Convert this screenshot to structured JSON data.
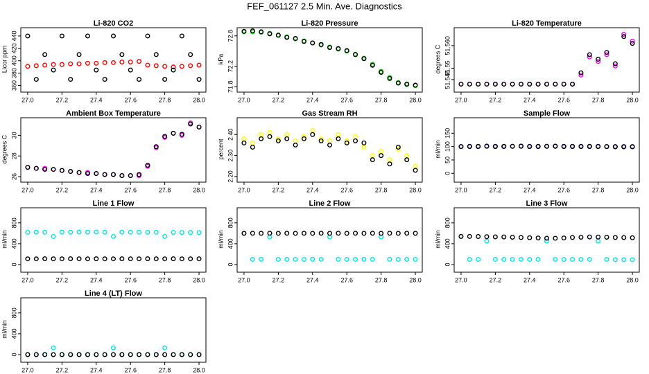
{
  "title": "FEF_061127  2.5 Min. Ave. Diagnostics",
  "chart_data": [
    {
      "type": "scatter",
      "title": "Li-820 CO2",
      "y_label": "Licor ppm",
      "x": [
        27.0,
        27.05,
        27.1,
        27.15,
        27.2,
        27.25,
        27.3,
        27.35,
        27.4,
        27.45,
        27.5,
        27.55,
        27.6,
        27.65,
        27.7,
        27.75,
        27.8,
        27.85,
        27.9,
        27.95,
        28.0
      ],
      "xlim": [
        26.98,
        28.02
      ],
      "xticks": [
        {
          "value": 27,
          "label": "27.0"
        },
        27.2,
        27.4,
        27.6,
        27.8,
        {
          "value": 28,
          "label": "28.0"
        }
      ],
      "ylim": [
        355,
        450
      ],
      "yticks": [
        360,
        380,
        400,
        420,
        440
      ],
      "series": [
        {
          "color": "#ff0000",
          "values": [
            391,
            392,
            393,
            394,
            394,
            395,
            395,
            396,
            396,
            397,
            397,
            398,
            398,
            399,
            393,
            392,
            391,
            390,
            391,
            392,
            393
          ]
        },
        {
          "color": "#000000",
          "values": [
            440,
            370,
            410,
            385,
            440,
            370,
            410,
            440,
            385,
            370,
            440,
            410,
            385,
            370,
            440,
            410,
            370,
            385,
            440,
            410,
            370
          ]
        }
      ]
    },
    {
      "type": "scatter",
      "title": "Li-820 Pressure",
      "y_label": "kPa",
      "x": [
        27.0,
        27.05,
        27.1,
        27.15,
        27.2,
        27.25,
        27.3,
        27.35,
        27.4,
        27.45,
        27.5,
        27.55,
        27.6,
        27.65,
        27.7,
        27.75,
        27.8,
        27.85,
        27.9,
        27.95,
        28.0
      ],
      "xlim": [
        26.98,
        28.02
      ],
      "xticks": [
        {
          "value": 27,
          "label": "27.0"
        },
        27.2,
        27.4,
        27.6,
        27.8,
        {
          "value": 28,
          "label": "28.0"
        }
      ],
      "ylim": [
        71.76,
        72.92
      ],
      "yticks": [
        71.8,
        72.2,
        72.8
      ],
      "series": [
        {
          "color": "#00cc00",
          "values": [
            72.88,
            72.88,
            72.87,
            72.85,
            72.82,
            72.78,
            72.74,
            72.7,
            72.66,
            72.62,
            72.58,
            72.54,
            72.5,
            72.44,
            72.36,
            72.24,
            72.1,
            71.98,
            71.88,
            71.84,
            71.82
          ]
        },
        {
          "color": "#000000",
          "values": [
            72.89,
            72.9,
            72.88,
            72.84,
            72.81,
            72.77,
            72.75,
            72.69,
            72.66,
            72.63,
            72.57,
            72.55,
            72.51,
            72.43,
            72.35,
            72.22,
            72.08,
            71.96,
            71.87,
            71.85,
            71.83
          ]
        }
      ]
    },
    {
      "type": "scatter",
      "title": "Li-820 Temperature",
      "y_label": "degrees C",
      "x": [
        27.0,
        27.05,
        27.1,
        27.15,
        27.2,
        27.25,
        27.3,
        27.35,
        27.4,
        27.45,
        27.5,
        27.55,
        27.6,
        27.65,
        27.7,
        27.75,
        27.8,
        27.85,
        27.9,
        27.95,
        28.0
      ],
      "xlim": [
        26.98,
        28.02
      ],
      "xticks": [
        {
          "value": 27,
          "label": "27.0"
        },
        27.2,
        27.4,
        27.6,
        27.8,
        {
          "value": 28,
          "label": "28.0"
        }
      ],
      "ylim": [
        51.541,
        51.567
      ],
      "yticks": [
        51.545,
        51.55,
        {
          "value": 51.56,
          "label": "51.560"
        }
      ],
      "series": [
        {
          "color": "#ff00ff",
          "values": [
            51.543,
            51.543,
            51.543,
            51.543,
            51.543,
            51.543,
            51.543,
            51.543,
            51.543,
            51.543,
            51.543,
            51.543,
            51.543,
            51.543,
            51.547,
            51.555,
            51.553,
            51.556,
            51.551,
            51.565,
            51.562
          ]
        },
        {
          "color": "#000000",
          "values": [
            51.543,
            51.543,
            51.543,
            51.543,
            51.543,
            51.543,
            51.543,
            51.543,
            51.543,
            51.543,
            51.543,
            51.543,
            51.543,
            51.543,
            51.548,
            51.556,
            51.554,
            51.557,
            51.552,
            51.564,
            51.561
          ]
        }
      ]
    },
    {
      "type": "scatter",
      "title": "Ambient Box Temperature",
      "y_label": "degrees C",
      "x": [
        27.0,
        27.05,
        27.1,
        27.15,
        27.2,
        27.25,
        27.3,
        27.35,
        27.4,
        27.45,
        27.5,
        27.55,
        27.6,
        27.65,
        27.7,
        27.75,
        27.8,
        27.85,
        27.9,
        27.95,
        28.0
      ],
      "xlim": [
        26.98,
        28.02
      ],
      "xticks": [
        {
          "value": 27,
          "label": "27.0"
        },
        27.2,
        27.4,
        27.6,
        27.8,
        {
          "value": 28,
          "label": "28.0"
        }
      ],
      "ylim": [
        25.8,
        31.5
      ],
      "yticks": [
        26,
        28,
        30
      ],
      "series": [
        {
          "color": "#ff00ff",
          "values": [
            26.9,
            26.8,
            26.8,
            26.7,
            26.6,
            26.5,
            26.4,
            26.4,
            26.3,
            26.2,
            26.2,
            26.1,
            26.1,
            26.1,
            27.0,
            28.8,
            29.8,
            30.2,
            30.0,
            31.2,
            30.8
          ]
        },
        {
          "color": "#000000",
          "values": [
            26.9,
            26.8,
            26.7,
            26.7,
            26.6,
            26.5,
            26.4,
            26.3,
            26.3,
            26.2,
            26.2,
            26.1,
            26.1,
            26.2,
            27.1,
            28.9,
            29.9,
            30.2,
            30.1,
            31.1,
            30.8
          ]
        }
      ]
    },
    {
      "type": "scatter",
      "title": "Gas Stream RH",
      "y_label": "percent",
      "x": [
        27.0,
        27.05,
        27.1,
        27.15,
        27.2,
        27.25,
        27.3,
        27.35,
        27.4,
        27.45,
        27.5,
        27.55,
        27.6,
        27.65,
        27.7,
        27.75,
        27.8,
        27.85,
        27.9,
        27.95,
        28.0
      ],
      "xlim": [
        26.98,
        28.02
      ],
      "xticks": [
        {
          "value": 27,
          "label": "27.0"
        },
        27.2,
        27.4,
        27.6,
        27.8,
        {
          "value": 28,
          "label": "28.0"
        }
      ],
      "ylim": [
        2.19,
        2.47
      ],
      "yticks": [
        {
          "value": 2.2,
          "label": "2.20"
        },
        {
          "value": 2.3,
          "label": "2.30"
        },
        {
          "value": 2.4,
          "label": "2.40"
        }
      ],
      "series": [
        {
          "color": "#ffff00",
          "values": [
            2.38,
            2.36,
            2.4,
            2.41,
            2.38,
            2.4,
            2.37,
            2.39,
            2.42,
            2.38,
            2.37,
            2.4,
            2.37,
            2.39,
            2.34,
            2.3,
            2.32,
            2.28,
            2.33,
            2.3,
            2.25
          ]
        },
        {
          "color": "#000000",
          "values": [
            2.36,
            2.34,
            2.38,
            2.39,
            2.37,
            2.38,
            2.35,
            2.38,
            2.4,
            2.37,
            2.35,
            2.38,
            2.36,
            2.37,
            2.36,
            2.28,
            2.3,
            2.26,
            2.34,
            2.28,
            2.23
          ]
        }
      ]
    },
    {
      "type": "scatter",
      "title": "Sample Flow",
      "y_label": "ml/min",
      "x": [
        27.0,
        27.05,
        27.1,
        27.15,
        27.2,
        27.25,
        27.3,
        27.35,
        27.4,
        27.45,
        27.5,
        27.55,
        27.6,
        27.65,
        27.7,
        27.75,
        27.8,
        27.85,
        27.9,
        27.95,
        28.0
      ],
      "xlim": [
        26.98,
        28.02
      ],
      "xticks": [
        {
          "value": 27,
          "label": "27.0"
        },
        27.2,
        27.4,
        27.6,
        27.8,
        {
          "value": 28,
          "label": "28.0"
        }
      ],
      "ylim": [
        -20,
        200
      ],
      "yticks": [
        0,
        50,
        100,
        150
      ],
      "series": [
        {
          "color": "#0000cc",
          "values": [
            100,
            101,
            100,
            102,
            101,
            100,
            101,
            102,
            101,
            100,
            101,
            102,
            101,
            100,
            101,
            100,
            101,
            100,
            99,
            100,
            99
          ]
        },
        {
          "color": "#000000",
          "values": [
            100,
            100,
            101,
            101,
            100,
            101,
            101,
            101,
            100,
            101,
            101,
            101,
            100,
            101,
            100,
            101,
            100,
            100,
            100,
            99,
            100
          ]
        }
      ]
    },
    {
      "type": "scatter",
      "title": "Line 1 Flow",
      "y_label": "ml/min",
      "x": [
        27.0,
        27.05,
        27.1,
        27.15,
        27.2,
        27.25,
        27.3,
        27.35,
        27.4,
        27.45,
        27.5,
        27.55,
        27.6,
        27.65,
        27.7,
        27.75,
        27.8,
        27.85,
        27.9,
        27.95,
        28.0
      ],
      "xlim": [
        26.98,
        28.02
      ],
      "xticks": [
        {
          "value": 27,
          "label": "27.0"
        },
        27.2,
        27.4,
        27.6,
        27.8,
        {
          "value": 28,
          "label": "28.0"
        }
      ],
      "ylim": [
        -80,
        1050
      ],
      "yticks": [
        0,
        400,
        800
      ],
      "series": [
        {
          "color": "#00e5e5",
          "values": [
            620,
            622,
            621,
            540,
            623,
            622,
            624,
            623,
            625,
            622,
            540,
            623,
            622,
            621,
            620,
            619,
            540,
            618,
            617,
            616,
            615
          ]
        },
        {
          "color": "#000000",
          "values": [
            110,
            110,
            111,
            110,
            110,
            111,
            110,
            110,
            111,
            110,
            110,
            111,
            110,
            110,
            111,
            110,
            110,
            111,
            110,
            110,
            110
          ]
        }
      ]
    },
    {
      "type": "scatter",
      "title": "Line 2 Flow",
      "y_label": "ml/min",
      "x": [
        27.0,
        27.05,
        27.1,
        27.15,
        27.2,
        27.25,
        27.3,
        27.35,
        27.4,
        27.45,
        27.5,
        27.55,
        27.6,
        27.65,
        27.7,
        27.75,
        27.8,
        27.85,
        27.9,
        27.95,
        28.0
      ],
      "xlim": [
        26.98,
        28.02
      ],
      "xticks": [
        {
          "value": 27,
          "label": "27.0"
        },
        27.2,
        27.4,
        27.6,
        27.8,
        {
          "value": 28,
          "label": "28.0"
        }
      ],
      "ylim": [
        -80,
        1050
      ],
      "yticks": [
        0,
        400,
        800
      ],
      "series": [
        {
          "color": "#00e5e5",
          "values": [
            600,
            100,
            101,
            530,
            100,
            101,
            100,
            100,
            101,
            100,
            530,
            101,
            100,
            100,
            101,
            100,
            530,
            101,
            100,
            100,
            100
          ]
        },
        {
          "color": "#000000",
          "values": [
            600,
            601,
            600,
            601,
            600,
            601,
            600,
            601,
            600,
            601,
            600,
            601,
            600,
            601,
            600,
            601,
            600,
            601,
            600,
            601,
            600
          ]
        }
      ]
    },
    {
      "type": "scatter",
      "title": "Line 3 Flow",
      "y_label": "ml/min",
      "x": [
        27.0,
        27.05,
        27.1,
        27.15,
        27.2,
        27.25,
        27.3,
        27.35,
        27.4,
        27.45,
        27.5,
        27.55,
        27.6,
        27.65,
        27.7,
        27.75,
        27.8,
        27.85,
        27.9,
        27.95,
        28.0
      ],
      "xlim": [
        26.98,
        28.02
      ],
      "xticks": [
        {
          "value": 27,
          "label": "27.0"
        },
        27.2,
        27.4,
        27.6,
        27.8,
        {
          "value": 28,
          "label": "28.0"
        }
      ],
      "ylim": [
        -80,
        1050
      ],
      "yticks": [
        0,
        400,
        800
      ],
      "series": [
        {
          "color": "#00e5e5",
          "values": [
            540,
            100,
            100,
            450,
            100,
            100,
            100,
            100,
            100,
            100,
            450,
            100,
            100,
            100,
            100,
            100,
            450,
            100,
            95,
            95,
            95
          ]
        },
        {
          "color": "#000000",
          "values": [
            540,
            540,
            538,
            535,
            532,
            530,
            525,
            520,
            515,
            510,
            505,
            505,
            510,
            520,
            525,
            530,
            528,
            525,
            520,
            518,
            515
          ]
        }
      ]
    },
    {
      "type": "scatter",
      "title": "Line 4 (LT) Flow",
      "y_label": "ml/min",
      "x": [
        27.0,
        27.05,
        27.1,
        27.15,
        27.2,
        27.25,
        27.3,
        27.35,
        27.4,
        27.45,
        27.5,
        27.55,
        27.6,
        27.65,
        27.7,
        27.75,
        27.8,
        27.85,
        27.9,
        27.95,
        28.0
      ],
      "xlim": [
        26.98,
        28.02
      ],
      "xticks": [
        {
          "value": 27,
          "label": "27.0"
        },
        27.2,
        27.4,
        27.6,
        27.8,
        {
          "value": 28,
          "label": "28.0"
        }
      ],
      "ylim": [
        -80,
        1050
      ],
      "yticks": [
        0,
        400,
        800
      ],
      "series": [
        {
          "color": "#00e5e5",
          "values": [
            2,
            2,
            2,
            130,
            2,
            2,
            2,
            2,
            2,
            2,
            130,
            2,
            2,
            2,
            2,
            2,
            130,
            2,
            2,
            2,
            2
          ]
        },
        {
          "color": "#000000",
          "values": [
            0,
            0,
            0,
            0,
            0,
            0,
            0,
            0,
            0,
            0,
            0,
            0,
            0,
            0,
            0,
            0,
            0,
            0,
            0,
            0,
            0
          ]
        }
      ]
    }
  ]
}
